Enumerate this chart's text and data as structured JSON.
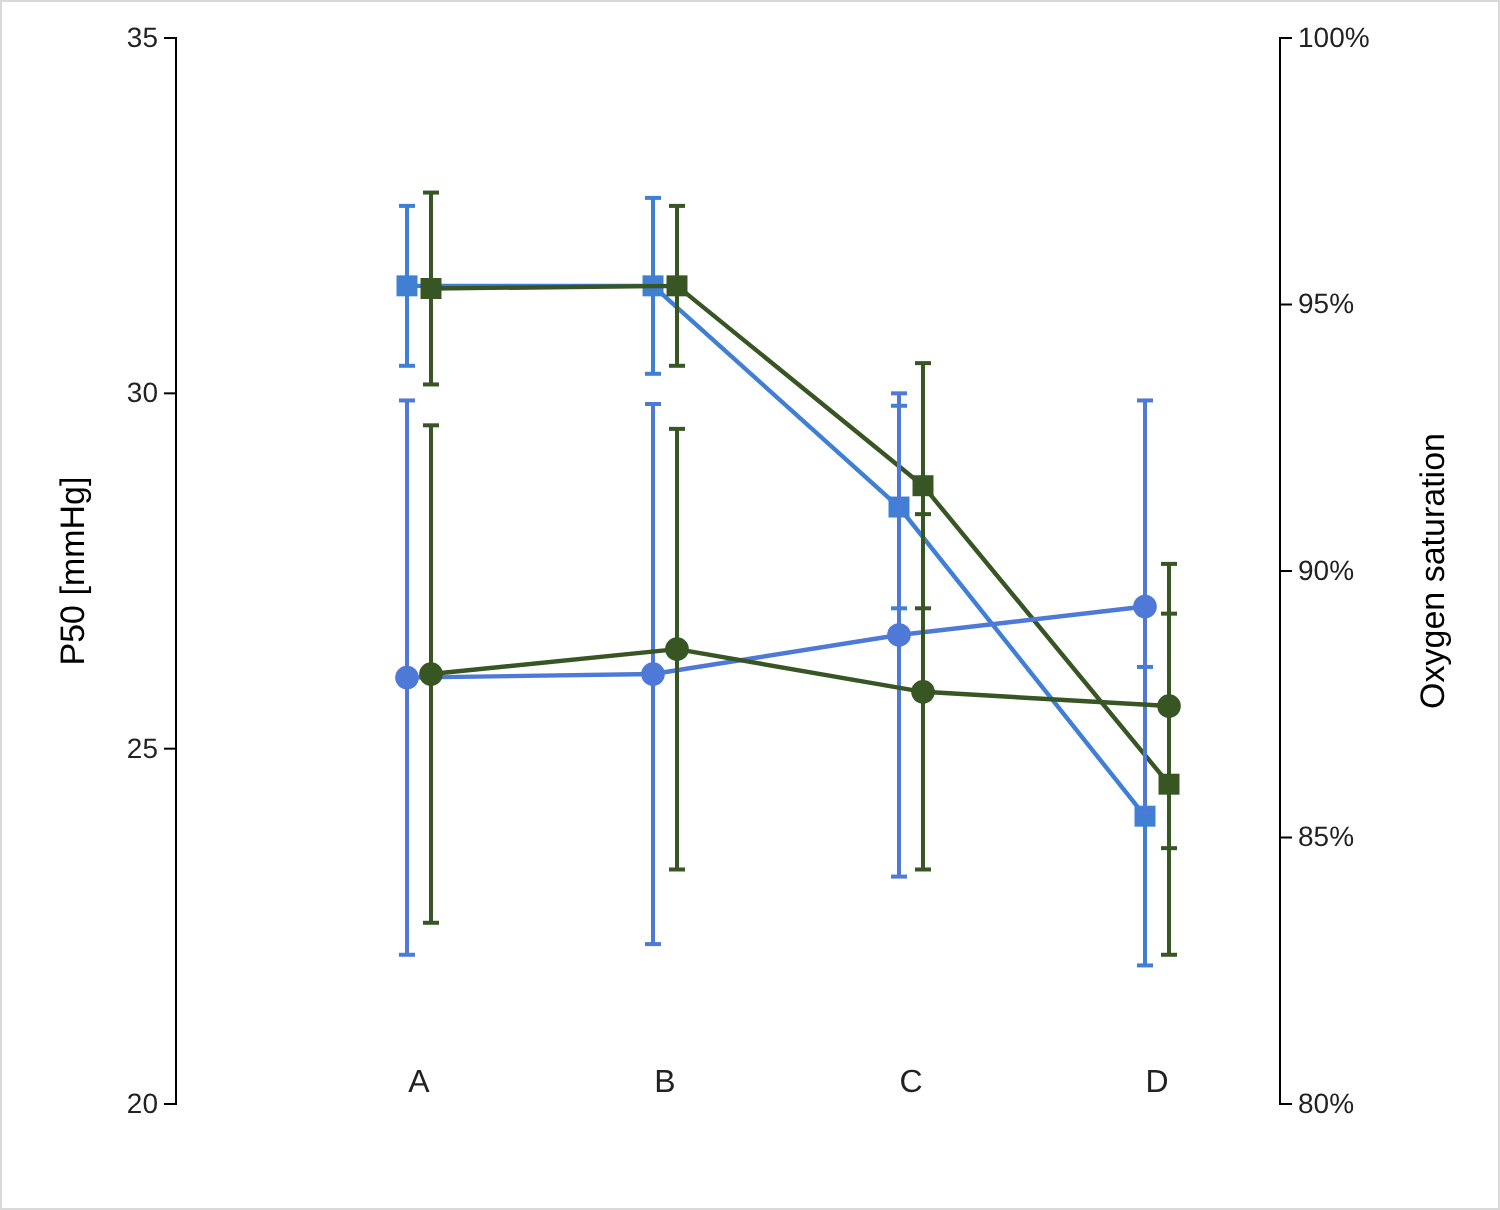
{
  "chart_data": {
    "type": "line",
    "ylabel": "P50 [mmHg]",
    "y2label": "Oxygen saturation",
    "categories": [
      "A",
      "B",
      "C",
      "D"
    ],
    "ylim": [
      20,
      35
    ],
    "yticks": [
      20,
      25,
      30,
      35
    ],
    "y2lim": [
      80,
      100
    ],
    "y2ticks": [
      {
        "value": 80,
        "label": "80%"
      },
      {
        "value": 85,
        "label": "85%"
      },
      {
        "value": 90,
        "label": "90%"
      },
      {
        "value": 95,
        "label": "95%"
      },
      {
        "value": 100,
        "label": "100%"
      }
    ],
    "grid": false,
    "line_style": "solid",
    "series": [
      {
        "color": "#3f7fd4",
        "marker": "square",
        "axis": "y2",
        "values": [
          95.35,
          95.35,
          91.2,
          85.4
        ],
        "errors": [
          1.5,
          1.65,
          1.9,
          2.8
        ]
      },
      {
        "color": "#375623",
        "marker": "square",
        "axis": "y2",
        "values": [
          95.3,
          95.35,
          91.6,
          86.0
        ],
        "errors": [
          1.8,
          1.5,
          2.3,
          3.2
        ]
      },
      {
        "color": "#4e79d6",
        "marker": "circle",
        "axis": "y",
        "values": [
          26.0,
          26.05,
          26.6,
          27.0
        ],
        "errors": [
          3.9,
          3.8,
          3.4,
          2.9
        ]
      },
      {
        "color": "#375623",
        "marker": "circle",
        "axis": "y",
        "values": [
          26.05,
          26.4,
          25.8,
          25.6
        ],
        "errors": [
          3.5,
          3.1,
          2.5,
          2.0
        ]
      }
    ]
  }
}
